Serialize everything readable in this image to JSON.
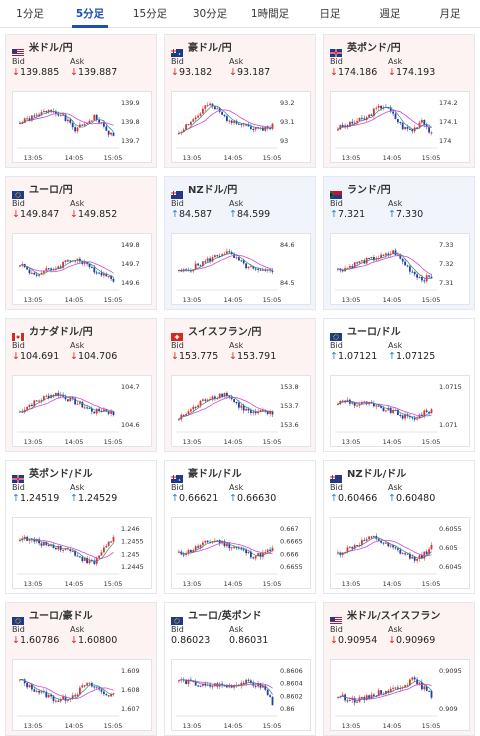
{
  "tabs": [
    "1分足",
    "5分足",
    "15分足",
    "30分足",
    "1時間足",
    "日足",
    "週足",
    "月足"
  ],
  "active_tab": 1,
  "bid_label": "Bid",
  "ask_label": "Ask",
  "colors": {
    "up_candle": "#e0322a",
    "down_candle": "#1f3fa8",
    "ma_fast": "#2b8a7a",
    "ma_slow": "#d04adf"
  },
  "cards": [
    {
      "pair": "米ドル/円",
      "flag": "us",
      "bg": "down",
      "bid": "139.885",
      "ask": "139.887",
      "bid_dir": "down",
      "ask_dir": "down",
      "yticks": [
        "139.9",
        "139.8",
        "139.7"
      ],
      "xticks": [
        "13:05",
        "14:05",
        "15:05"
      ],
      "seed": 1,
      "trend": [
        0.45,
        0.55,
        0.62,
        0.75,
        0.7,
        0.5,
        0.3,
        0.45,
        0.6,
        0.35,
        0.15
      ]
    },
    {
      "pair": "豪ドル/円",
      "flag": "au",
      "bg": "down",
      "bid": "93.182",
      "ask": "93.187",
      "bid_dir": "down",
      "ask_dir": "down",
      "yticks": [
        "93.2",
        "93.1",
        "93"
      ],
      "xticks": [
        "13:05",
        "14:05",
        "15:05"
      ],
      "seed": 2,
      "trend": [
        0.25,
        0.45,
        0.6,
        0.85,
        0.75,
        0.55,
        0.5,
        0.45,
        0.3,
        0.35,
        0.4
      ]
    },
    {
      "pair": "英ポンド/円",
      "flag": "gb",
      "bg": "down",
      "bid": "174.186",
      "ask": "174.193",
      "bid_dir": "down",
      "ask_dir": "down",
      "yticks": [
        "174.2",
        "174.1",
        "174"
      ],
      "xticks": [
        "13:05",
        "14:05",
        "15:05"
      ],
      "seed": 3,
      "trend": [
        0.35,
        0.4,
        0.5,
        0.55,
        0.75,
        0.85,
        0.6,
        0.35,
        0.3,
        0.55,
        0.2
      ]
    },
    {
      "pair": "ユーロ/円",
      "flag": "eu",
      "bg": "down",
      "bid": "149.847",
      "ask": "149.852",
      "bid_dir": "down",
      "ask_dir": "down",
      "yticks": [
        "149.8",
        "149.7",
        "149.6"
      ],
      "xticks": [
        "13:05",
        "14:05",
        "15:05"
      ],
      "seed": 4,
      "trend": [
        0.5,
        0.3,
        0.25,
        0.35,
        0.4,
        0.55,
        0.6,
        0.45,
        0.35,
        0.25,
        0.15
      ]
    },
    {
      "pair": "NZドル/円",
      "flag": "nz",
      "bg": "up",
      "bid": "84.587",
      "ask": "84.599",
      "bid_dir": "up",
      "ask_dir": "up",
      "yticks": [
        "84.6",
        "84.5"
      ],
      "xticks": [
        "13:05",
        "14:05",
        "15:05"
      ],
      "seed": 5,
      "trend": [
        0.3,
        0.35,
        0.45,
        0.55,
        0.65,
        0.75,
        0.6,
        0.45,
        0.35,
        0.3,
        0.35
      ]
    },
    {
      "pair": "ランド/円",
      "flag": "za",
      "bg": "up",
      "bid": "7.321",
      "ask": "7.330",
      "bid_dir": "up",
      "ask_dir": "up",
      "yticks": [
        "7.33",
        "7.32",
        "7.31"
      ],
      "xticks": [
        "13:05",
        "14:05",
        "15:05"
      ],
      "seed": 6,
      "trend": [
        0.35,
        0.4,
        0.5,
        0.55,
        0.6,
        0.65,
        0.75,
        0.5,
        0.3,
        0.15,
        0.2
      ]
    },
    {
      "pair": "カナダドル/円",
      "flag": "ca",
      "bg": "down",
      "bid": "104.691",
      "ask": "104.706",
      "bid_dir": "down",
      "ask_dir": "down",
      "yticks": [
        "104.7",
        "104.6"
      ],
      "xticks": [
        "13:05",
        "14:05",
        "15:05"
      ],
      "seed": 7,
      "trend": [
        0.35,
        0.5,
        0.6,
        0.7,
        0.75,
        0.65,
        0.55,
        0.45,
        0.35,
        0.4,
        0.3
      ]
    },
    {
      "pair": "スイスフラン/円",
      "flag": "ch",
      "bg": "down",
      "bid": "153.775",
      "ask": "153.791",
      "bid_dir": "down",
      "ask_dir": "down",
      "yticks": [
        "153.8",
        "153.7",
        "153.6"
      ],
      "xticks": [
        "13:05",
        "14:05",
        "15:05"
      ],
      "seed": 8,
      "trend": [
        0.2,
        0.35,
        0.5,
        0.65,
        0.7,
        0.75,
        0.55,
        0.4,
        0.3,
        0.35,
        0.3
      ]
    },
    {
      "pair": "ユーロ/ドル",
      "flag": "eu",
      "bg": "neutral",
      "bid": "1.07121",
      "ask": "1.07125",
      "bid_dir": "up",
      "ask_dir": "up",
      "yticks": [
        "1.0715",
        "1.071"
      ],
      "xticks": [
        "13:05",
        "14:05",
        "15:05"
      ],
      "seed": 9,
      "trend": [
        0.55,
        0.6,
        0.5,
        0.55,
        0.45,
        0.4,
        0.35,
        0.25,
        0.2,
        0.3,
        0.4
      ]
    },
    {
      "pair": "英ポンド/ドル",
      "flag": "gb",
      "bg": "neutral",
      "bid": "1.24519",
      "ask": "1.24529",
      "bid_dir": "up",
      "ask_dir": "up",
      "yticks": [
        "1.246",
        "1.2455",
        "1.245",
        "1.2445"
      ],
      "xticks": [
        "13:05",
        "14:05",
        "15:05"
      ],
      "seed": 10,
      "trend": [
        0.7,
        0.65,
        0.6,
        0.55,
        0.5,
        0.45,
        0.35,
        0.2,
        0.15,
        0.5,
        0.7
      ]
    },
    {
      "pair": "豪ドル/ドル",
      "flag": "au",
      "bg": "neutral",
      "bid": "0.66621",
      "ask": "0.66630",
      "bid_dir": "up",
      "ask_dir": "up",
      "yticks": [
        "0.667",
        "0.6665",
        "0.666",
        "0.6655"
      ],
      "xticks": [
        "13:05",
        "14:05",
        "15:05"
      ],
      "seed": 11,
      "trend": [
        0.35,
        0.4,
        0.5,
        0.6,
        0.65,
        0.55,
        0.5,
        0.4,
        0.3,
        0.35,
        0.45
      ]
    },
    {
      "pair": "NZドル/ドル",
      "flag": "nz",
      "bg": "neutral",
      "bid": "0.60466",
      "ask": "0.60480",
      "bid_dir": "up",
      "ask_dir": "up",
      "yticks": [
        "0.6055",
        "0.605",
        "0.6045"
      ],
      "xticks": [
        "13:05",
        "14:05",
        "15:05"
      ],
      "seed": 12,
      "trend": [
        0.35,
        0.45,
        0.55,
        0.65,
        0.7,
        0.55,
        0.45,
        0.35,
        0.25,
        0.3,
        0.5
      ]
    },
    {
      "pair": "ユーロ/豪ドル",
      "flag": "eu",
      "bg": "down",
      "bid": "1.60786",
      "ask": "1.60800",
      "bid_dir": "down",
      "ask_dir": "down",
      "yticks": [
        "1.609",
        "1.608",
        "1.607"
      ],
      "xticks": [
        "13:05",
        "14:05",
        "15:05"
      ],
      "seed": 13,
      "trend": [
        0.7,
        0.55,
        0.45,
        0.35,
        0.25,
        0.3,
        0.4,
        0.6,
        0.55,
        0.4,
        0.35
      ]
    },
    {
      "pair": "ユーロ/英ポンド",
      "flag": "eu",
      "bg": "neutral",
      "bid": "0.86023",
      "ask": "0.86031",
      "bid_dir": "none",
      "ask_dir": "none",
      "yticks": [
        "0.8606",
        "0.8604",
        "0.8602",
        "0.86"
      ],
      "xticks": [
        "13:05",
        "14:05",
        "15:05"
      ],
      "seed": 14,
      "trend": [
        0.7,
        0.65,
        0.6,
        0.55,
        0.6,
        0.55,
        0.6,
        0.65,
        0.6,
        0.55,
        0.2
      ]
    },
    {
      "pair": "米ドル/スイスフラン",
      "flag": "us",
      "bg": "down",
      "bid": "0.90954",
      "ask": "0.90969",
      "bid_dir": "down",
      "ask_dir": "down",
      "yticks": [
        "0.9095",
        "0.909"
      ],
      "xticks": [
        "13:05",
        "14:05",
        "15:05"
      ],
      "seed": 15,
      "trend": [
        0.35,
        0.3,
        0.25,
        0.3,
        0.4,
        0.45,
        0.5,
        0.6,
        0.7,
        0.55,
        0.35
      ]
    }
  ]
}
